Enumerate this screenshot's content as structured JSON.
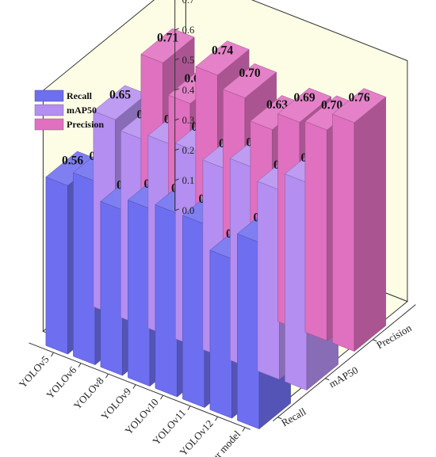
{
  "chart_data": {
    "type": "bar",
    "categories": [
      "Our model",
      "YOLOv12",
      "YOLOv11",
      "YOLOv10",
      "YOLOv9",
      "YOLOv8",
      "YOLOv6",
      "YOLOv5"
    ],
    "metrics": [
      "Recall",
      "mAP50",
      "Precision"
    ],
    "series": [
      {
        "name": "Recall",
        "values": [
          0.62,
          0.53,
          0.61,
          0.61,
          0.59,
          0.55,
          0.61,
          0.56
        ],
        "labels": [
          "0.62",
          "0.53",
          "0.61",
          "0.61",
          "0.59",
          "0.55",
          "0.61",
          "0.56"
        ]
      },
      {
        "name": "mAP50",
        "values": [
          0.69,
          0.63,
          0.67,
          0.63,
          0.65,
          0.64,
          0.62,
          0.65
        ],
        "labels": [
          "0.69",
          "0.63",
          "0.67",
          "0.63",
          "0.65",
          "0.64",
          "0.62",
          "0.65"
        ]
      },
      {
        "name": "Precision",
        "values": [
          0.76,
          0.7,
          0.69,
          0.63,
          0.7,
          0.74,
          0.61,
          0.71
        ],
        "labels": [
          "0.76",
          "0.70",
          "0.69",
          "0.63",
          "0.70",
          "0.74",
          "0.61",
          "0.71"
        ]
      }
    ],
    "zlim": [
      0,
      0.8
    ],
    "z_ticks": [
      "0.0",
      "0.1",
      "0.2",
      "0.3",
      "0.4",
      "0.5",
      "0.6",
      "0.7",
      "0.8"
    ],
    "legend_position": "top-left",
    "colors": {
      "Recall": "#6e6ef0",
      "mAP50": "#b48ef0",
      "Precision": "#e070c0",
      "background": "#fdfde6"
    }
  }
}
